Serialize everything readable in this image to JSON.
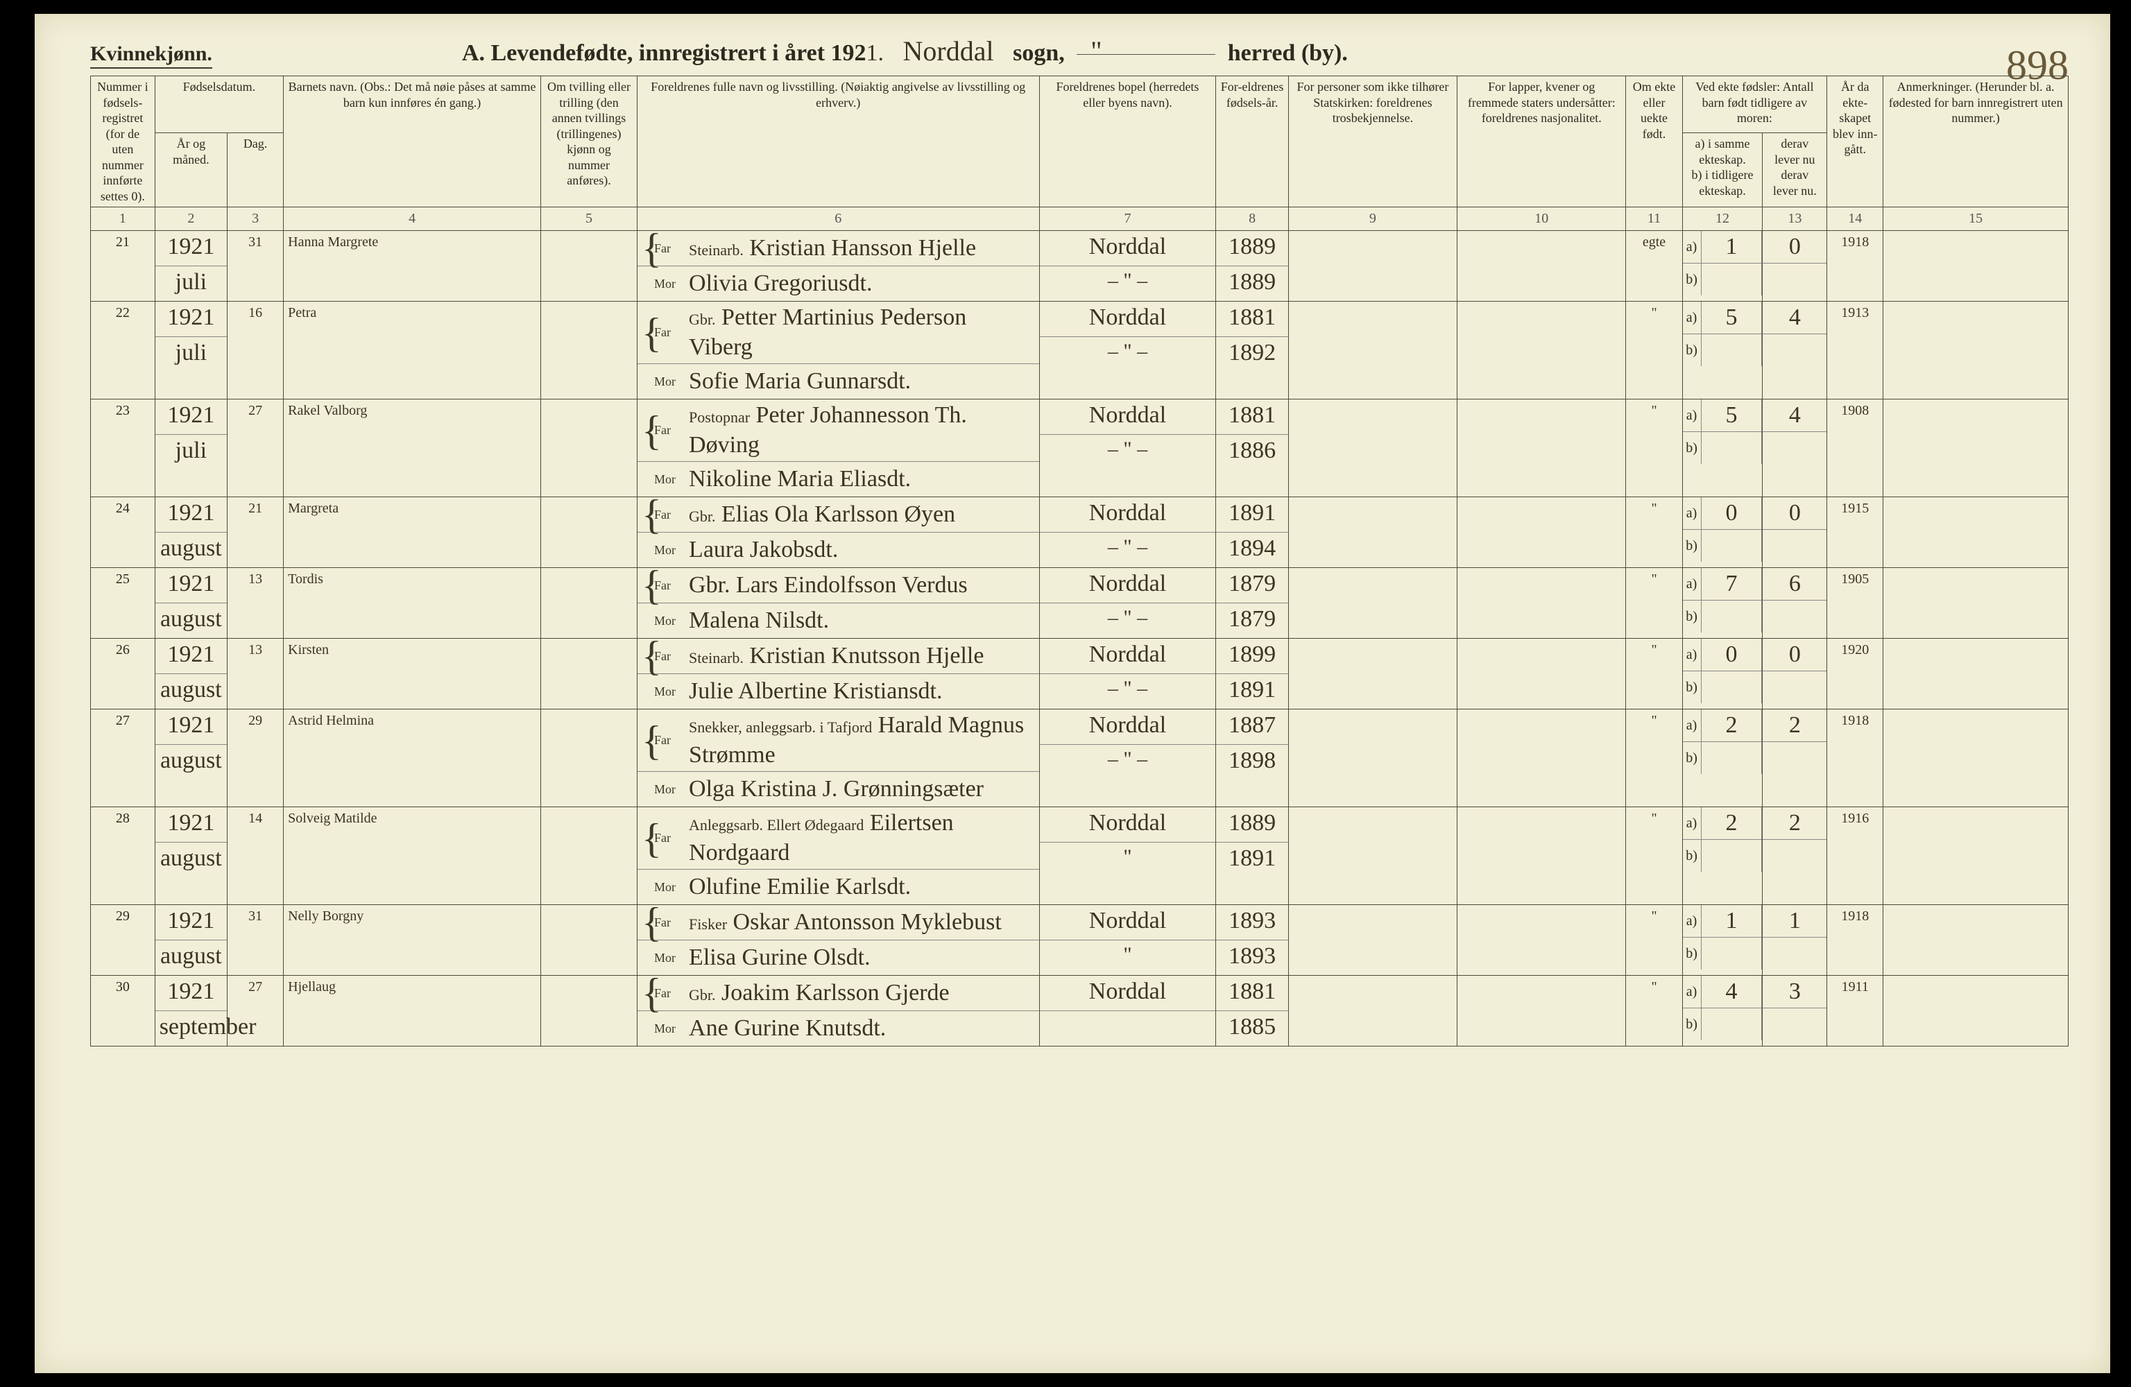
{
  "header": {
    "gender": "Kvinnekjønn.",
    "title_prefix": "A.  Levendefødte, innregistrert i året 192",
    "year_suffix": "1.",
    "parish_word": "sogn,",
    "district_word": "herred (by).",
    "parish_hand": "Norddal",
    "district_hand": "\"",
    "page_number": "898"
  },
  "columns": {
    "c1": "Nummer i fødsels-registret (for de uten nummer innførte settes 0).",
    "c2_group": "Fødselsdatum.",
    "c2a": "År og måned.",
    "c2b": "Dag.",
    "c4": "Barnets navn.\n(Obs.: Det må nøie påses at samme barn kun innføres én gang.)",
    "c5": "Om tvilling eller trilling (den annen tvillings (trillingenes) kjønn og nummer anføres).",
    "c6": "Foreldrenes fulle navn og livsstilling.\n(Nøiaktig angivelse av livsstilling og erhverv.)",
    "c6_far": "Far",
    "c6_mor": "Mor",
    "c7": "Foreldrenes bopel (herredets eller byens navn).",
    "c8": "For-eldrenes fødsels-år.",
    "c9": "For personer som ikke tilhører Statskirken: foreldrenes trosbekjennelse.",
    "c10": "For lapper, kvener og fremmede staters undersåtter: foreldrenes nasjonalitet.",
    "c11": "Om ekte eller uekte født.",
    "c12_top": "Ved ekte fødsler: Antall barn født tidligere av moren:",
    "c12a": "a) i samme ekteskap.",
    "c12b": "b) i tidligere ekteskap.",
    "c13_top": "derav lever nu",
    "c13b": "derav lever nu.",
    "c14": "År da ekte-skapet blev inn-gått.",
    "c15": "Anmerkninger.\n(Herunder bl. a. fødested for barn innregistrert uten nummer.)"
  },
  "colnums": [
    "1",
    "2",
    "3",
    "4",
    "5",
    "6",
    "7",
    "8",
    "9",
    "10",
    "11",
    "12",
    "13",
    "14",
    "15"
  ],
  "rows": [
    {
      "num": "21",
      "year": "1921",
      "month": "juli",
      "day": "31",
      "name": "Hanna Margrete",
      "far_occ": "Steinarb.",
      "far": "Kristian Hansson Hjelle",
      "mor": "Olivia Gregoriusdt.",
      "res_f": "Norddal",
      "res_m": "– \" –",
      "yr_f": "1889",
      "yr_m": "1889",
      "ekte": "egte",
      "a": "1",
      "a2": "0",
      "b": "",
      "b2": "",
      "marr": "1918"
    },
    {
      "num": "22",
      "year": "1921",
      "month": "juli",
      "day": "16",
      "name": "Petra",
      "far_occ": "Gbr.",
      "far": "Petter Martinius Pederson Viberg",
      "mor": "Sofie Maria Gunnarsdt.",
      "res_f": "Norddal",
      "res_m": "– \" –",
      "yr_f": "1881",
      "yr_m": "1892",
      "ekte": "\"",
      "a": "5",
      "a2": "4",
      "b": "",
      "b2": "",
      "marr": "1913"
    },
    {
      "num": "23",
      "year": "1921",
      "month": "juli",
      "day": "27",
      "name": "Rakel Valborg",
      "far_occ": "Postopnar",
      "far": "Peter Johannesson Th. Døving",
      "mor": "Nikoline Maria Eliasdt.",
      "res_f": "Norddal",
      "res_m": "– \" –",
      "yr_f": "1881",
      "yr_m": "1886",
      "ekte": "\"",
      "a": "5",
      "a2": "4",
      "b": "",
      "b2": "",
      "marr": "1908"
    },
    {
      "num": "24",
      "year": "1921",
      "month": "august",
      "day": "21",
      "name": "Margreta",
      "far_occ": "Gbr.",
      "far": "Elias Ola Karlsson Øyen",
      "mor": "Laura Jakobsdt.",
      "res_f": "Norddal",
      "res_m": "– \" –",
      "yr_f": "1891",
      "yr_m": "1894",
      "ekte": "\"",
      "a": "0",
      "a2": "0",
      "b": "",
      "b2": "",
      "marr": "1915"
    },
    {
      "num": "25",
      "year": "1921",
      "month": "august",
      "day": "13",
      "name": "Tordis",
      "far_occ": "",
      "far": "Gbr. Lars Eindolfsson Verdus",
      "mor": "Malena Nilsdt.",
      "res_f": "Norddal",
      "res_m": "– \" –",
      "yr_f": "1879",
      "yr_m": "1879",
      "ekte": "\"",
      "a": "7",
      "a2": "6",
      "b": "",
      "b2": "",
      "marr": "1905"
    },
    {
      "num": "26",
      "year": "1921",
      "month": "august",
      "day": "13",
      "name": "Kirsten",
      "far_occ": "Steinarb.",
      "far": "Kristian Knutsson Hjelle",
      "mor": "Julie Albertine Kristiansdt.",
      "res_f": "Norddal",
      "res_m": "– \" –",
      "yr_f": "1899",
      "yr_m": "1891",
      "ekte": "\"",
      "a": "0",
      "a2": "0",
      "b": "",
      "b2": "",
      "marr": "1920"
    },
    {
      "num": "27",
      "year": "1921",
      "month": "august",
      "day": "29",
      "name": "Astrid Helmina",
      "far_occ": "Snekker, anleggsarb. i Tafjord",
      "far": "Harald Magnus Strømme",
      "mor": "Olga Kristina J. Grønningsæter",
      "res_f": "Norddal",
      "res_m": "– \" –",
      "yr_f": "1887",
      "yr_m": "1898",
      "ekte": "\"",
      "a": "2",
      "a2": "2",
      "b": "",
      "b2": "",
      "marr": "1918"
    },
    {
      "num": "28",
      "year": "1921",
      "month": "august",
      "day": "14",
      "name": "Solveig Matilde",
      "far_occ": "Anleggsarb. Ellert Ødegaard",
      "far": "Eilertsen Nordgaard",
      "mor": "Olufine Emilie Karlsdt.",
      "res_f": "Norddal",
      "res_m": "\"",
      "yr_f": "1889",
      "yr_m": "1891",
      "ekte": "\"",
      "a": "2",
      "a2": "2",
      "b": "",
      "b2": "",
      "marr": "1916"
    },
    {
      "num": "29",
      "year": "1921",
      "month": "august",
      "day": "31",
      "name": "Nelly Borgny",
      "far_occ": "Fisker",
      "far": "Oskar Antonsson Myklebust",
      "mor": "Elisa Gurine Olsdt.",
      "res_f": "Norddal",
      "res_m": "\"",
      "yr_f": "1893",
      "yr_m": "1893",
      "ekte": "\"",
      "a": "1",
      "a2": "1",
      "b": "",
      "b2": "",
      "marr": "1918"
    },
    {
      "num": "30",
      "year": "1921",
      "month": "september",
      "day": "27",
      "name": "Hjellaug",
      "far_occ": "Gbr.",
      "far": "Joakim Karlsson Gjerde",
      "mor": "Ane Gurine Knutsdt.",
      "res_f": "Norddal",
      "res_m": "",
      "yr_f": "1881",
      "yr_m": "1885",
      "ekte": "\"",
      "a": "4",
      "a2": "3",
      "b": "",
      "b2": "",
      "marr": "1911"
    }
  ]
}
